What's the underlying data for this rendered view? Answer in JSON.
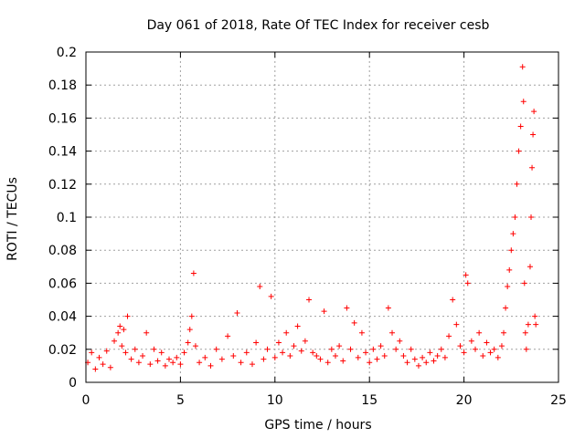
{
  "chart_data": {
    "type": "scatter",
    "title": "Day 061 of 2018, Rate Of TEC Index for receiver cesb",
    "xlabel": "GPS time / hours",
    "ylabel": "ROTI / TECUs",
    "xlim": [
      0,
      25
    ],
    "ylim": [
      0,
      0.2
    ],
    "xticks": [
      0,
      5,
      10,
      15,
      20,
      25
    ],
    "yticks": [
      0,
      0.02,
      0.04,
      0.06,
      0.08,
      0.1,
      0.12,
      0.14,
      0.16,
      0.18,
      0.2
    ],
    "ytick_labels": [
      "0",
      "0.02",
      "0.04",
      "0.06",
      "0.08",
      "0.1",
      "0.12",
      "0.14",
      "0.16",
      "0.18",
      "0.2"
    ],
    "grid": true,
    "marker": "+",
    "series_color": "#ff0000",
    "series": [
      {
        "name": "ROTI",
        "points": [
          [
            0.1,
            0.012
          ],
          [
            0.3,
            0.018
          ],
          [
            0.5,
            0.008
          ],
          [
            0.7,
            0.015
          ],
          [
            0.9,
            0.011
          ],
          [
            1.1,
            0.019
          ],
          [
            1.3,
            0.009
          ],
          [
            1.5,
            0.025
          ],
          [
            1.7,
            0.03
          ],
          [
            1.8,
            0.034
          ],
          [
            1.9,
            0.022
          ],
          [
            2.0,
            0.032
          ],
          [
            2.1,
            0.018
          ],
          [
            2.2,
            0.04
          ],
          [
            2.4,
            0.014
          ],
          [
            2.6,
            0.02
          ],
          [
            2.8,
            0.012
          ],
          [
            3.0,
            0.016
          ],
          [
            3.2,
            0.03
          ],
          [
            3.4,
            0.011
          ],
          [
            3.6,
            0.02
          ],
          [
            3.8,
            0.013
          ],
          [
            4.0,
            0.018
          ],
          [
            4.2,
            0.01
          ],
          [
            4.4,
            0.014
          ],
          [
            4.6,
            0.012
          ],
          [
            4.8,
            0.015
          ],
          [
            5.0,
            0.011
          ],
          [
            5.2,
            0.018
          ],
          [
            5.4,
            0.024
          ],
          [
            5.5,
            0.032
          ],
          [
            5.6,
            0.04
          ],
          [
            5.7,
            0.066
          ],
          [
            5.8,
            0.022
          ],
          [
            6.0,
            0.012
          ],
          [
            6.3,
            0.015
          ],
          [
            6.6,
            0.01
          ],
          [
            6.9,
            0.02
          ],
          [
            7.2,
            0.014
          ],
          [
            7.5,
            0.028
          ],
          [
            7.8,
            0.016
          ],
          [
            8.0,
            0.042
          ],
          [
            8.2,
            0.012
          ],
          [
            8.5,
            0.018
          ],
          [
            8.8,
            0.011
          ],
          [
            9.0,
            0.024
          ],
          [
            9.2,
            0.058
          ],
          [
            9.4,
            0.014
          ],
          [
            9.6,
            0.02
          ],
          [
            9.8,
            0.052
          ],
          [
            10.0,
            0.015
          ],
          [
            10.2,
            0.024
          ],
          [
            10.4,
            0.018
          ],
          [
            10.6,
            0.03
          ],
          [
            10.8,
            0.016
          ],
          [
            11.0,
            0.022
          ],
          [
            11.2,
            0.034
          ],
          [
            11.4,
            0.019
          ],
          [
            11.6,
            0.025
          ],
          [
            11.8,
            0.05
          ],
          [
            12.0,
            0.018
          ],
          [
            12.2,
            0.016
          ],
          [
            12.4,
            0.014
          ],
          [
            12.6,
            0.043
          ],
          [
            12.8,
            0.012
          ],
          [
            13.0,
            0.02
          ],
          [
            13.2,
            0.016
          ],
          [
            13.4,
            0.022
          ],
          [
            13.6,
            0.013
          ],
          [
            13.8,
            0.045
          ],
          [
            14.0,
            0.02
          ],
          [
            14.2,
            0.036
          ],
          [
            14.4,
            0.015
          ],
          [
            14.6,
            0.03
          ],
          [
            14.8,
            0.018
          ],
          [
            15.0,
            0.012
          ],
          [
            15.2,
            0.02
          ],
          [
            15.4,
            0.014
          ],
          [
            15.6,
            0.022
          ],
          [
            15.8,
            0.016
          ],
          [
            16.0,
            0.045
          ],
          [
            16.2,
            0.03
          ],
          [
            16.4,
            0.02
          ],
          [
            16.6,
            0.025
          ],
          [
            16.8,
            0.016
          ],
          [
            17.0,
            0.012
          ],
          [
            17.2,
            0.02
          ],
          [
            17.4,
            0.014
          ],
          [
            17.6,
            0.01
          ],
          [
            17.8,
            0.015
          ],
          [
            18.0,
            0.012
          ],
          [
            18.2,
            0.018
          ],
          [
            18.4,
            0.013
          ],
          [
            18.6,
            0.016
          ],
          [
            18.8,
            0.02
          ],
          [
            19.0,
            0.015
          ],
          [
            19.2,
            0.028
          ],
          [
            19.4,
            0.05
          ],
          [
            19.6,
            0.035
          ],
          [
            19.8,
            0.022
          ],
          [
            20.0,
            0.018
          ],
          [
            20.1,
            0.065
          ],
          [
            20.2,
            0.06
          ],
          [
            20.4,
            0.025
          ],
          [
            20.6,
            0.02
          ],
          [
            20.8,
            0.03
          ],
          [
            21.0,
            0.016
          ],
          [
            21.2,
            0.024
          ],
          [
            21.4,
            0.018
          ],
          [
            21.6,
            0.02
          ],
          [
            21.8,
            0.015
          ],
          [
            22.0,
            0.022
          ],
          [
            22.1,
            0.03
          ],
          [
            22.2,
            0.045
          ],
          [
            22.3,
            0.058
          ],
          [
            22.4,
            0.068
          ],
          [
            22.5,
            0.08
          ],
          [
            22.6,
            0.09
          ],
          [
            22.7,
            0.1
          ],
          [
            22.8,
            0.12
          ],
          [
            22.9,
            0.14
          ],
          [
            23.0,
            0.155
          ],
          [
            23.1,
            0.191
          ],
          [
            23.15,
            0.17
          ],
          [
            23.2,
            0.06
          ],
          [
            23.25,
            0.03
          ],
          [
            23.3,
            0.02
          ],
          [
            23.4,
            0.035
          ],
          [
            23.5,
            0.07
          ],
          [
            23.55,
            0.1
          ],
          [
            23.6,
            0.13
          ],
          [
            23.65,
            0.15
          ],
          [
            23.7,
            0.164
          ],
          [
            23.75,
            0.04
          ],
          [
            23.8,
            0.035
          ]
        ]
      }
    ]
  }
}
